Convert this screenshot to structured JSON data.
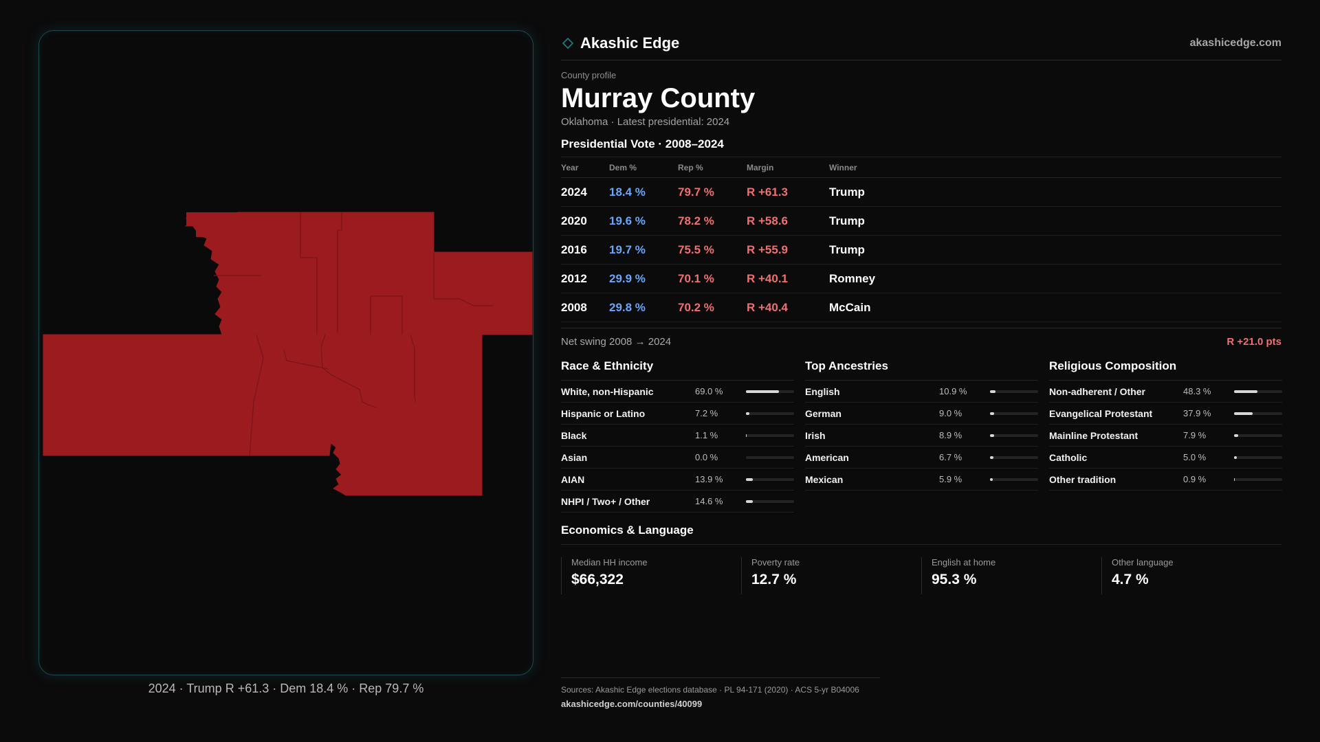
{
  "brand": {
    "name": "Akashic Edge",
    "url": "akashicedge.com",
    "icon": "diamond-icon",
    "accent": "#1b7f8c"
  },
  "profile": {
    "eyebrow": "County profile",
    "title": "Murray County",
    "subtitle": "Oklahoma · Latest presidential: 2024"
  },
  "map": {
    "fill_color": "#9b1b1f",
    "border_color": "#7a1418",
    "caption": "2024 · Trump R +61.3 · Dem 18.4 % · Rep 79.7 %"
  },
  "votes": {
    "title": "Presidential Vote · 2008–2024",
    "headers": {
      "year": "Year",
      "dem": "Dem %",
      "rep": "Rep %",
      "margin": "Margin",
      "winner": "Winner"
    },
    "rows": [
      {
        "year": "2024",
        "dem": "18.4 %",
        "rep": "79.7 %",
        "margin": "R +61.3",
        "winner": "Trump"
      },
      {
        "year": "2020",
        "dem": "19.6 %",
        "rep": "78.2 %",
        "margin": "R +58.6",
        "winner": "Trump"
      },
      {
        "year": "2016",
        "dem": "19.7 %",
        "rep": "75.5 %",
        "margin": "R +55.9",
        "winner": "Trump"
      },
      {
        "year": "2012",
        "dem": "29.9 %",
        "rep": "70.1 %",
        "margin": "R +40.1",
        "winner": "Romney"
      },
      {
        "year": "2008",
        "dem": "29.8 %",
        "rep": "70.2 %",
        "margin": "R +40.4",
        "winner": "McCain"
      }
    ],
    "dem_color": "#6aa6f8",
    "rep_color": "#f07070"
  },
  "swing": {
    "label": "Net swing 2008 → 2024",
    "value": "R +21.0 pts"
  },
  "race": {
    "title": "Race & Ethnicity",
    "items": [
      {
        "label": "White, non-Hispanic",
        "value": "69.0 %",
        "pct": 69.0
      },
      {
        "label": "Hispanic or Latino",
        "value": "7.2 %",
        "pct": 7.2
      },
      {
        "label": "Black",
        "value": "1.1 %",
        "pct": 1.1
      },
      {
        "label": "Asian",
        "value": "0.0 %",
        "pct": 0.0
      },
      {
        "label": "AIAN",
        "value": "13.9 %",
        "pct": 13.9
      },
      {
        "label": "NHPI / Two+ / Other",
        "value": "14.6 %",
        "pct": 14.6
      }
    ]
  },
  "ancestry": {
    "title": "Top Ancestries",
    "items": [
      {
        "label": "English",
        "value": "10.9 %",
        "pct": 10.9
      },
      {
        "label": "German",
        "value": "9.0 %",
        "pct": 9.0
      },
      {
        "label": "Irish",
        "value": "8.9 %",
        "pct": 8.9
      },
      {
        "label": "American",
        "value": "6.7 %",
        "pct": 6.7
      },
      {
        "label": "Mexican",
        "value": "5.9 %",
        "pct": 5.9
      }
    ]
  },
  "religion": {
    "title": "Religious Composition",
    "items": [
      {
        "label": "Non-adherent / Other",
        "value": "48.3 %",
        "pct": 48.3
      },
      {
        "label": "Evangelical Protestant",
        "value": "37.9 %",
        "pct": 37.9
      },
      {
        "label": "Mainline Protestant",
        "value": "7.9 %",
        "pct": 7.9
      },
      {
        "label": "Catholic",
        "value": "5.0 %",
        "pct": 5.0
      },
      {
        "label": "Other tradition",
        "value": "0.9 %",
        "pct": 0.9
      }
    ]
  },
  "economics": {
    "title": "Economics & Language",
    "cells": [
      {
        "label": "Median HH income",
        "value": "$66,322"
      },
      {
        "label": "Poverty rate",
        "value": "12.7 %"
      },
      {
        "label": "English at home",
        "value": "95.3 %"
      },
      {
        "label": "Other language",
        "value": "4.7 %"
      }
    ]
  },
  "sources": {
    "line": "Sources: Akashic Edge elections database · PL 94-171 (2020) · ACS 5-yr B04006",
    "url": "akashicedge.com/counties/40099"
  }
}
